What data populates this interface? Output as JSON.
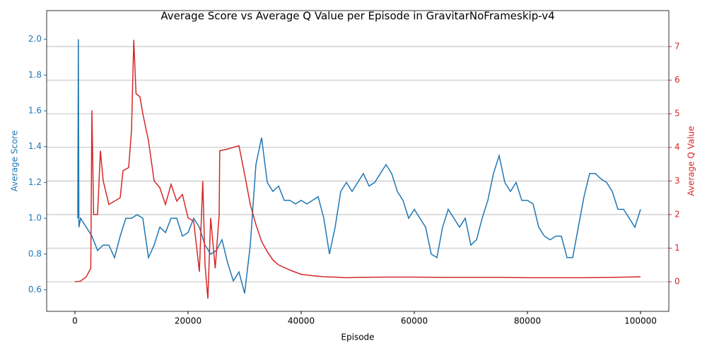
{
  "chart_data": {
    "type": "line",
    "title": "Average Score vs Average Q Value per Episode in GravitarNoFrameskip-v4",
    "xlabel": "Episode",
    "ylabel": "Average Score",
    "y2label": "Average Q Value",
    "xlim": [
      -5000,
      105000
    ],
    "xticks": [
      0,
      20000,
      40000,
      60000,
      80000,
      100000
    ],
    "ylim": [
      0.48,
      2.16
    ],
    "yticks": [
      0.6,
      0.8,
      {
        "value": 1,
        "label": "1.0"
      },
      1.2,
      1.4,
      1.6,
      1.8,
      {
        "value": 2,
        "label": "2.0"
      }
    ],
    "y2lim": [
      -0.88,
      8.07
    ],
    "y2ticks": [
      0,
      1,
      2,
      3,
      4,
      5,
      6,
      7
    ],
    "grid": "y2",
    "series": [
      {
        "name": "Average Score",
        "color": "#1f77b4",
        "x": [
          500,
          600,
          700,
          1000,
          2000,
          3000,
          4000,
          5000,
          6000,
          7000,
          8000,
          9000,
          10000,
          11000,
          12000,
          13000,
          14000,
          15000,
          16000,
          17000,
          18000,
          19000,
          20000,
          21000,
          22000,
          23000,
          24000,
          25000,
          26000,
          27000,
          28000,
          29000,
          30000,
          31000,
          32000,
          33000,
          34000,
          35000,
          36000,
          37000,
          38000,
          39000,
          40000,
          41000,
          42000,
          43000,
          44000,
          45000,
          46000,
          47000,
          48000,
          49000,
          50000,
          51000,
          52000,
          53000,
          54000,
          55000,
          56000,
          57000,
          58000,
          59000,
          60000,
          61000,
          62000,
          63000,
          64000,
          65000,
          66000,
          67000,
          68000,
          69000,
          70000,
          71000,
          72000,
          73000,
          74000,
          75000,
          76000,
          77000,
          78000,
          79000,
          80000,
          81000,
          82000,
          83000,
          84000,
          85000,
          86000,
          87000,
          88000,
          89000,
          90000,
          91000,
          92000,
          93000,
          94000,
          95000,
          96000,
          97000,
          98000,
          99000,
          100000
        ],
        "values": [
          1.0,
          2.0,
          0.95,
          1.0,
          0.95,
          0.9,
          0.82,
          0.85,
          0.85,
          0.78,
          0.9,
          1.0,
          1.0,
          1.02,
          1.0,
          0.78,
          0.85,
          0.95,
          0.92,
          1.0,
          1.0,
          0.9,
          0.92,
          1.0,
          0.95,
          0.85,
          0.8,
          0.82,
          0.88,
          0.75,
          0.65,
          0.7,
          0.58,
          0.85,
          1.3,
          1.45,
          1.2,
          1.15,
          1.18,
          1.1,
          1.1,
          1.08,
          1.1,
          1.08,
          1.1,
          1.12,
          1.0,
          0.8,
          0.95,
          1.15,
          1.2,
          1.15,
          1.2,
          1.25,
          1.18,
          1.2,
          1.25,
          1.3,
          1.25,
          1.15,
          1.1,
          1.0,
          1.05,
          1.0,
          0.95,
          0.8,
          0.78,
          0.95,
          1.05,
          1.0,
          0.95,
          1.0,
          0.85,
          0.88,
          1.0,
          1.1,
          1.25,
          1.35,
          1.2,
          1.15,
          1.2,
          1.1,
          1.1,
          1.08,
          0.95,
          0.9,
          0.88,
          0.9,
          0.9,
          0.78,
          0.78,
          0.95,
          1.12,
          1.25,
          1.25,
          1.22,
          1.2,
          1.15,
          1.05,
          1.05,
          1.0,
          0.95,
          1.05
        ]
      },
      {
        "name": "Average Q Value",
        "color": "#d62728",
        "axis": "y2",
        "x": [
          0,
          1000,
          2000,
          2800,
          3000,
          3300,
          4000,
          4500,
          5000,
          6000,
          8000,
          8500,
          9500,
          10000,
          10400,
          10800,
          11500,
          12000,
          13000,
          14000,
          15000,
          16000,
          17000,
          18000,
          19000,
          20000,
          21000,
          22000,
          22600,
          23000,
          23500,
          24000,
          24800,
          25500,
          25600,
          27000,
          28000,
          29000,
          30000,
          31000,
          32000,
          33000,
          34000,
          35000,
          36000,
          38000,
          40000,
          42000,
          44000,
          46000,
          48000,
          50000,
          55000,
          60000,
          65000,
          70000,
          75000,
          80000,
          85000,
          90000,
          95000,
          100000
        ],
        "values": [
          0,
          0.02,
          0.15,
          0.4,
          5.1,
          2.0,
          2.0,
          3.9,
          3.0,
          2.3,
          2.5,
          3.3,
          3.4,
          4.5,
          7.2,
          5.6,
          5.5,
          5.0,
          4.2,
          3.0,
          2.8,
          2.3,
          2.9,
          2.4,
          2.6,
          1.9,
          1.8,
          0.3,
          3.0,
          0.5,
          -0.5,
          1.9,
          0.4,
          2.0,
          3.9,
          3.95,
          4.0,
          4.05,
          3.2,
          2.3,
          1.7,
          1.2,
          0.9,
          0.65,
          0.5,
          0.35,
          0.22,
          0.18,
          0.15,
          0.14,
          0.12,
          0.13,
          0.14,
          0.14,
          0.13,
          0.13,
          0.13,
          0.12,
          0.12,
          0.12,
          0.13,
          0.15
        ]
      }
    ]
  }
}
